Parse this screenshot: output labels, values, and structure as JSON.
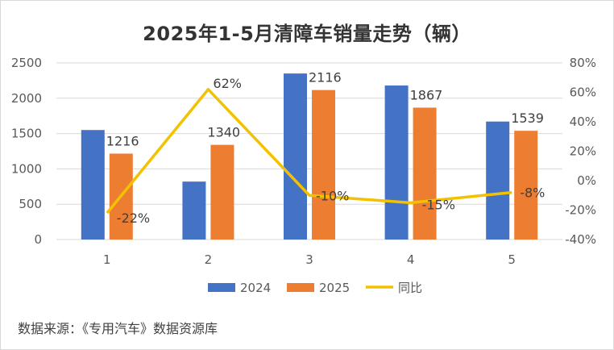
{
  "title": "2025年1-5月清障车销量走势（辆）",
  "source": "数据来源：《专用汽车》数据资源库",
  "chart_data": {
    "type": "bar",
    "categories": [
      "1",
      "2",
      "3",
      "4",
      "5"
    ],
    "series": [
      {
        "name": "2024",
        "type": "bar",
        "color": "#4472C4",
        "values": [
          1550,
          820,
          2350,
          2180,
          1670
        ]
      },
      {
        "name": "2025",
        "type": "bar",
        "color": "#ED7D31",
        "values": [
          1216,
          1340,
          2116,
          1867,
          1539
        ],
        "labels": [
          "1216",
          "1340",
          "2116",
          "1867",
          "1539"
        ]
      },
      {
        "name": "同比",
        "type": "line",
        "axis": "right",
        "color": "#F2C200",
        "values": [
          -22,
          62,
          -10,
          -15,
          -8
        ],
        "labels": [
          "-22%",
          "62%",
          "-10%",
          "-15%",
          "-8%"
        ]
      }
    ],
    "y_left": {
      "min": 0,
      "max": 2500,
      "ticks": [
        "0",
        "500",
        "1000",
        "1500",
        "2000",
        "2500"
      ]
    },
    "y_right": {
      "min": -40,
      "max": 80,
      "ticks": [
        "-40%",
        "-20%",
        "0%",
        "20%",
        "40%",
        "60%",
        "80%"
      ]
    },
    "grid": true,
    "legend": "bottom"
  }
}
